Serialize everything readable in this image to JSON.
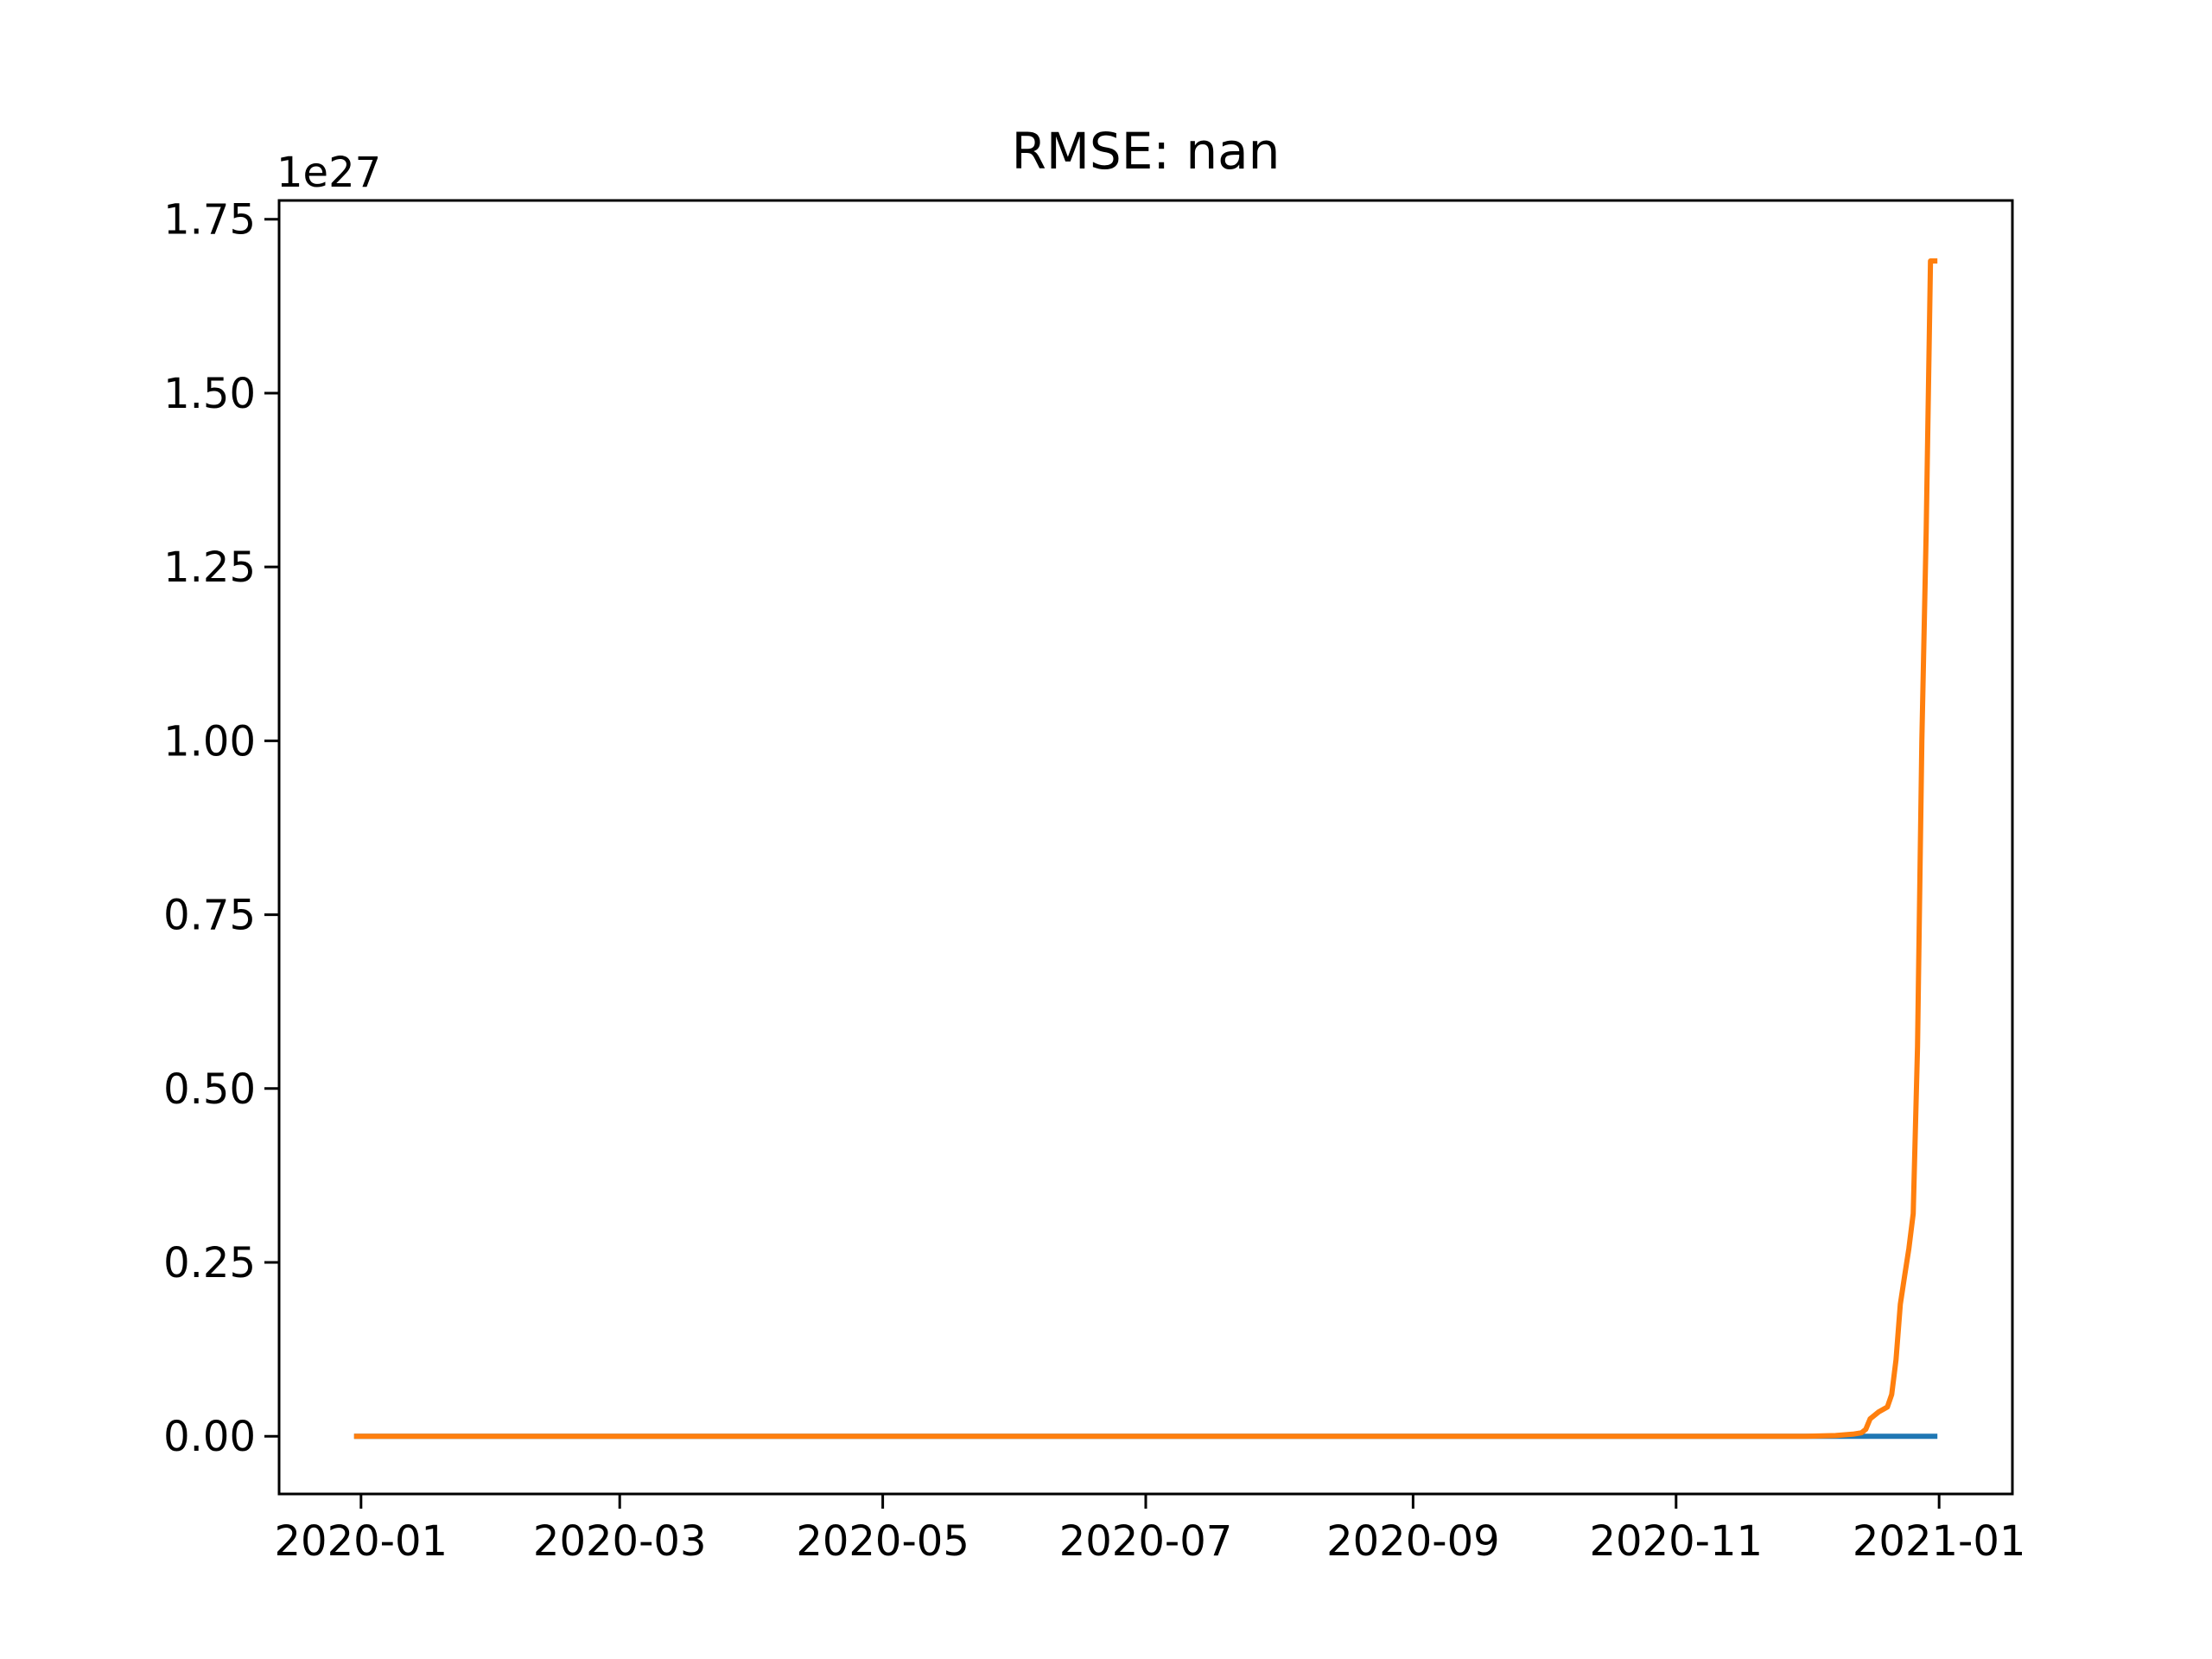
{
  "chart_data": {
    "type": "line",
    "title": "RMSE: nan",
    "xlabel": "",
    "ylabel": "",
    "y_offset_label": "1e27",
    "y_scale": 1e+27,
    "xlim": [
      "2019-12-13",
      "2021-01-18"
    ],
    "ylim": [
      -0.083,
      1.777
    ],
    "x_ticks": [
      "2020-01",
      "2020-03",
      "2020-05",
      "2020-07",
      "2020-09",
      "2020-11",
      "2021-01"
    ],
    "y_ticks": [
      "0.00",
      "0.25",
      "0.50",
      "0.75",
      "1.00",
      "1.25",
      "1.50",
      "1.75"
    ],
    "grid": false,
    "series": [
      {
        "color": "#1f77b4",
        "x": [
          "2019-12-31",
          "2020-12-31"
        ],
        "y": [
          0.0,
          0.0
        ]
      },
      {
        "color": "#ff7f0e",
        "x": [
          "2019-12-31",
          "2020-12-01",
          "2020-12-08",
          "2020-12-12",
          "2020-12-14",
          "2020-12-15",
          "2020-12-16",
          "2020-12-18",
          "2020-12-20",
          "2020-12-21",
          "2020-12-22",
          "2020-12-23",
          "2020-12-24",
          "2020-12-25",
          "2020-12-26",
          "2020-12-27",
          "2020-12-28",
          "2020-12-29",
          "2020-12-30",
          "2020-12-31"
        ],
        "y": [
          0.0,
          0.0,
          0.001,
          0.003,
          0.005,
          0.01,
          0.025,
          0.035,
          0.042,
          0.06,
          0.11,
          0.19,
          0.23,
          0.27,
          0.32,
          0.56,
          1.0,
          1.3,
          1.69,
          1.69
        ]
      }
    ]
  }
}
